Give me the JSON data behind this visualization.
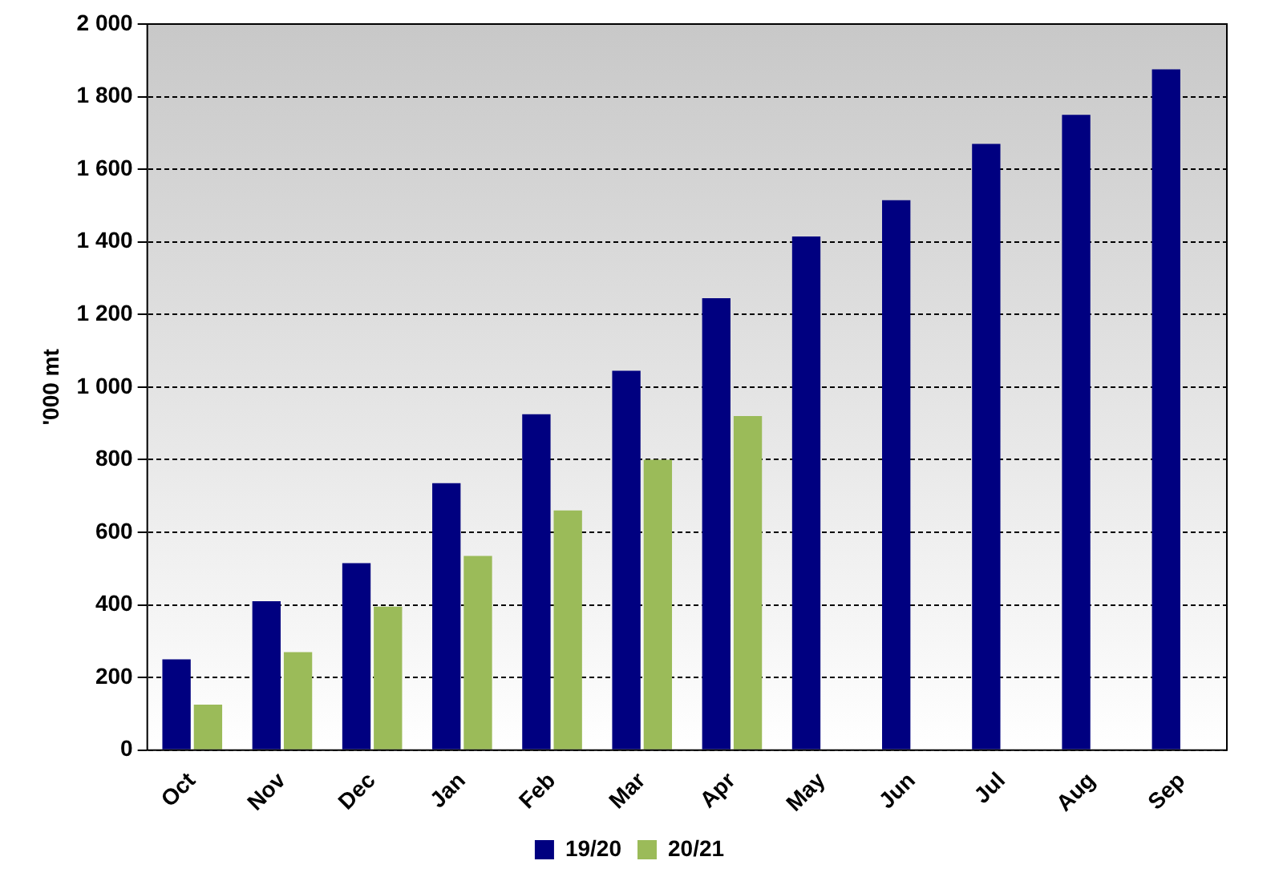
{
  "chart_data": {
    "type": "bar",
    "ylabel": "'000 mt",
    "categories": [
      "Oct",
      "Nov",
      "Dec",
      "Jan",
      "Feb",
      "Mar",
      "Apr",
      "May",
      "Jun",
      "Jul",
      "Aug",
      "Sep"
    ],
    "series": [
      {
        "name": "19/20",
        "color": "#000080",
        "values": [
          250,
          410,
          515,
          735,
          925,
          1045,
          1245,
          1415,
          1515,
          1670,
          1750,
          1875
        ]
      },
      {
        "name": "20/21",
        "color": "#9bbb59",
        "values": [
          125,
          270,
          395,
          535,
          660,
          800,
          920,
          null,
          null,
          null,
          null,
          null
        ]
      }
    ],
    "ylim": [
      0,
      2000
    ],
    "yticks": [
      0,
      200,
      400,
      600,
      800,
      {
        "value": 1000,
        "label": "1 000"
      },
      {
        "value": 1200,
        "label": "1 200"
      },
      {
        "value": 1400,
        "label": "1 400"
      },
      {
        "value": 1600,
        "label": "1 600"
      },
      {
        "value": 1800,
        "label": "1 800"
      },
      {
        "value": 2000,
        "label": "2 000"
      }
    ],
    "grid": "y",
    "legend": "bottom"
  }
}
